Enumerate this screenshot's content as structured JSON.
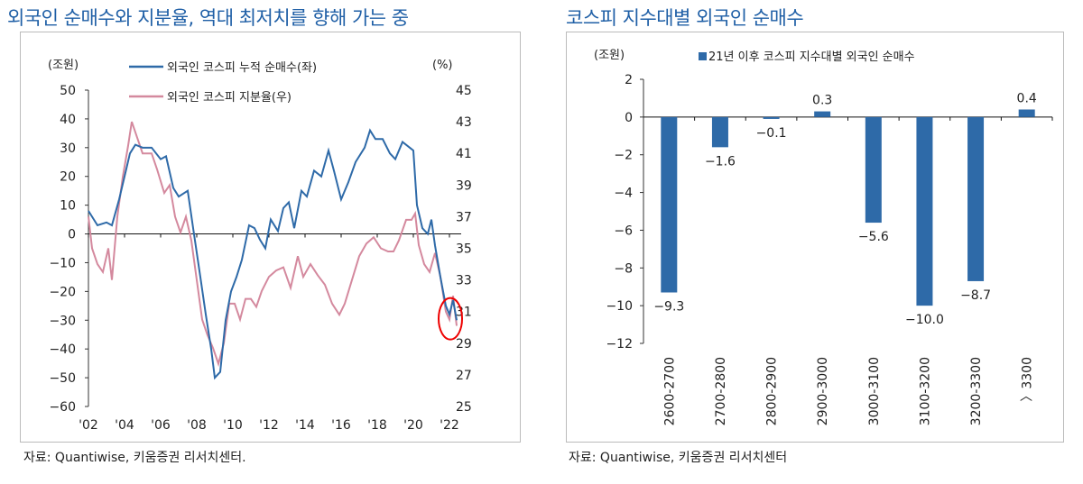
{
  "left": {
    "title": "외국인 순매수와 지분율, 역대 최저치를 향해 가는 중",
    "source": "자료: Quantiwise, 키움증권 리서치센터.",
    "chart_data": {
      "type": "line",
      "left_unit": "(조원)",
      "right_unit": "(%)",
      "yleft_lim": [
        -60,
        50
      ],
      "yleft_ticks": [
        "50",
        "40",
        "30",
        "20",
        "10",
        "0",
        "−10",
        "−20",
        "−30",
        "−40",
        "−50",
        "−60"
      ],
      "yright_lim": [
        25,
        45
      ],
      "yright_ticks": [
        "45",
        "43",
        "41",
        "39",
        "37",
        "35",
        "33",
        "31",
        "29",
        "27",
        "25"
      ],
      "x_lim": [
        2002,
        2023
      ],
      "x_ticks": [
        "'02",
        "'04",
        "'06",
        "'08",
        "'10",
        "'12",
        "'14",
        "'16",
        "'18",
        "'20",
        "'22"
      ],
      "annotation": "red circle around 2022 lows",
      "series": [
        {
          "name": "외국인 코스피 누적 순매수(좌)",
          "axis": "left",
          "color": "#2e6aa8",
          "x": [
            2002.0,
            2002.5,
            2003.0,
            2003.3,
            2003.7,
            2004.0,
            2004.3,
            2004.6,
            2005.0,
            2005.5,
            2006.0,
            2006.3,
            2006.7,
            2007.0,
            2007.5,
            2007.8,
            2008.2,
            2008.5,
            2008.8,
            2009.0,
            2009.3,
            2009.6,
            2009.9,
            2010.2,
            2010.5,
            2010.9,
            2011.2,
            2011.5,
            2011.8,
            2012.1,
            2012.5,
            2012.8,
            2013.1,
            2013.4,
            2013.8,
            2014.1,
            2014.5,
            2014.9,
            2015.3,
            2015.6,
            2016.0,
            2016.4,
            2016.8,
            2017.3,
            2017.6,
            2017.9,
            2018.3,
            2018.7,
            2019.0,
            2019.4,
            2019.8,
            2020.0,
            2020.2,
            2020.5,
            2020.8,
            2021.0,
            2021.2,
            2021.5,
            2021.8,
            2022.0,
            2022.2,
            2022.4
          ],
          "y": [
            8,
            3,
            4,
            3,
            12,
            20,
            28,
            31,
            30,
            30,
            26,
            27,
            16,
            13,
            15,
            2,
            -15,
            -28,
            -40,
            -50,
            -48,
            -30,
            -20,
            -15,
            -9,
            3,
            2,
            -2,
            -5,
            5,
            1,
            9,
            11,
            2,
            15,
            13,
            22,
            20,
            29,
            22,
            12,
            18,
            25,
            30,
            36,
            33,
            33,
            28,
            26,
            32,
            30,
            29,
            10,
            2,
            0,
            5,
            -4,
            -15,
            -25,
            -28,
            -23,
            -30
          ]
        },
        {
          "name": "외국인 코스피 지분율(우)",
          "axis": "right",
          "color": "#d4899e",
          "x": [
            2002.0,
            2002.2,
            2002.5,
            2002.8,
            2003.1,
            2003.3,
            2003.6,
            2003.9,
            2004.2,
            2004.4,
            2004.7,
            2005.0,
            2005.5,
            2005.8,
            2006.2,
            2006.5,
            2006.8,
            2007.1,
            2007.4,
            2007.7,
            2008.0,
            2008.3,
            2008.6,
            2008.9,
            2009.2,
            2009.5,
            2009.8,
            2010.1,
            2010.4,
            2010.7,
            2011.0,
            2011.3,
            2011.6,
            2012.0,
            2012.4,
            2012.8,
            2013.2,
            2013.6,
            2013.9,
            2014.3,
            2014.7,
            2015.1,
            2015.5,
            2015.9,
            2016.2,
            2016.6,
            2017.0,
            2017.4,
            2017.8,
            2018.2,
            2018.6,
            2018.9,
            2019.2,
            2019.6,
            2019.9,
            2020.1,
            2020.3,
            2020.6,
            2020.9,
            2021.2,
            2021.5,
            2021.8,
            2022.0,
            2022.2,
            2022.4
          ],
          "y": [
            37,
            35,
            34,
            33.5,
            35,
            33,
            37,
            39.5,
            41.5,
            43,
            42,
            41,
            41,
            40,
            38.5,
            39,
            37,
            36,
            37,
            35.5,
            33,
            30.5,
            29.5,
            28.7,
            27.7,
            29,
            31.5,
            31.5,
            30.5,
            31.8,
            31.8,
            31.3,
            32.3,
            33.2,
            33.6,
            33.8,
            32.5,
            34.5,
            33.2,
            34.0,
            33.3,
            32.7,
            31.5,
            30.8,
            31.5,
            33.0,
            34.5,
            35.3,
            35.7,
            35.0,
            34.8,
            34.8,
            35.5,
            36.8,
            36.8,
            37.2,
            35.2,
            34.0,
            33.5,
            34.7,
            33.2,
            31.0,
            30.5,
            32.0,
            30.1
          ]
        }
      ]
    }
  },
  "right": {
    "title": "코스피 지수대별 외국인 순매수",
    "source": "자료: Quantiwise, 키움증권 리서치센터",
    "chart_data": {
      "type": "bar",
      "unit": "(조원)",
      "series_name": "21년 이후 코스피 지수대별 외국인 순매수",
      "color": "#2e6aa8",
      "categories": [
        "2600-2700",
        "2700-2800",
        "2800-2900",
        "2900-3000",
        "3000-3100",
        "3100-3200",
        "3200-3300",
        "〉3300"
      ],
      "values": [
        -9.3,
        -1.6,
        -0.1,
        0.3,
        -5.6,
        -10.0,
        -8.7,
        0.4
      ],
      "labels": [
        "−9.3",
        "−1.6",
        "−0.1",
        "0.3",
        "−5.6",
        "−10.0",
        "−8.7",
        "0.4"
      ],
      "ylim": [
        -12,
        2
      ],
      "yticks": [
        "2",
        "0",
        "−2",
        "−4",
        "−6",
        "−8",
        "−10",
        "−12"
      ]
    }
  }
}
